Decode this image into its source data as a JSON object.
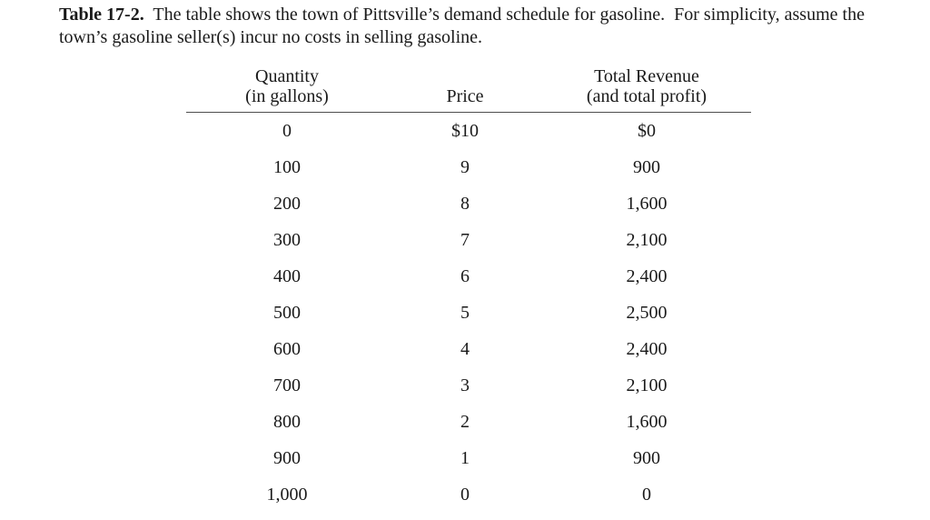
{
  "page": {
    "background": "#ffffff",
    "text_color": "#1a1a1a",
    "rule_color": "#4d4d4d"
  },
  "caption": {
    "label": "Table 17-2.",
    "line1_rest": "  The table shows the town of Pittsville’s demand schedule for gasoline.  For simplicity, assume the",
    "line2": "town’s gasoline seller(s) incur no costs in selling gasoline."
  },
  "table": {
    "headers": [
      {
        "line1": "Quantity",
        "line2": "(in gallons)"
      },
      {
        "line1": "Price",
        "line2": ""
      },
      {
        "line1": "Total Revenue",
        "line2": "(and total profit)"
      }
    ],
    "rows": [
      [
        "0",
        "$10",
        "$0"
      ],
      [
        "100",
        "9",
        "900"
      ],
      [
        "200",
        "8",
        "1,600"
      ],
      [
        "300",
        "7",
        "2,100"
      ],
      [
        "400",
        "6",
        "2,400"
      ],
      [
        "500",
        "5",
        "2,500"
      ],
      [
        "600",
        "4",
        "2,400"
      ],
      [
        "700",
        "3",
        "2,100"
      ],
      [
        "800",
        "2",
        "1,600"
      ],
      [
        "900",
        "1",
        "900"
      ],
      [
        "1,000",
        "0",
        "0"
      ]
    ]
  }
}
